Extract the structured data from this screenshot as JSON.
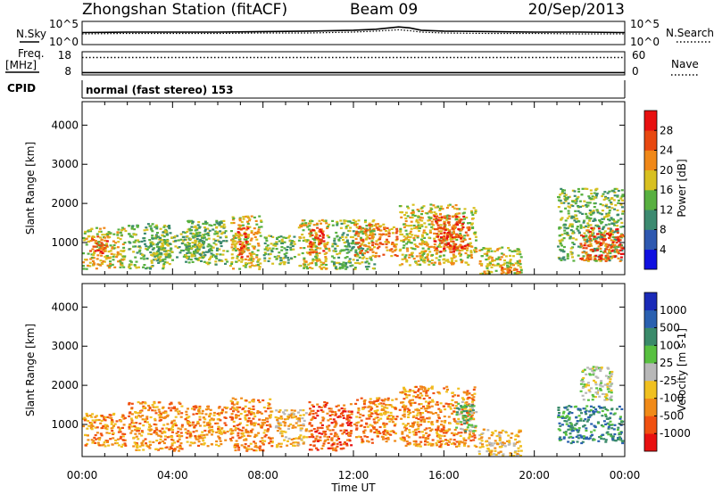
{
  "header": {
    "title": "Zhongshan Station (fitACF)",
    "beam": "Beam 09",
    "date": "20/Sep/2013",
    "cpid_label": "CPID",
    "cpid_value": "normal (fast stereo) 153"
  },
  "chart_data": [
    {
      "type": "line",
      "panel": "noise",
      "left_label": "N.Sky",
      "right_label": "N.Search",
      "left_ticks": [
        "10^5",
        "10^0"
      ],
      "right_ticks": [
        "10^5",
        "10^0"
      ],
      "x": [
        0,
        2,
        4,
        6,
        8,
        10,
        12,
        13,
        14,
        14.5,
        15,
        16,
        18,
        20,
        22,
        24
      ],
      "series": [
        {
          "name": "N.Sky",
          "style": "solid",
          "values": [
            2.6,
            2.7,
            2.7,
            2.7,
            2.8,
            2.9,
            3.1,
            3.3,
            3.8,
            3.6,
            3.1,
            2.9,
            2.8,
            2.7,
            2.7,
            2.6
          ]
        },
        {
          "name": "N.Search",
          "style": "dotted",
          "values": [
            2.3,
            2.4,
            2.4,
            2.4,
            2.5,
            2.5,
            2.7,
            2.9,
            3.2,
            3.0,
            2.7,
            2.5,
            2.4,
            2.4,
            2.3,
            2.3
          ]
        }
      ]
    },
    {
      "type": "line",
      "panel": "frequency",
      "left_label": "Freq.",
      "left_unit": "[MHz]",
      "right_label": "Nave",
      "left_ticks": [
        "18",
        "8"
      ],
      "right_ticks": [
        "60",
        "0"
      ],
      "ylim": [
        8,
        18
      ],
      "x": [
        0,
        24
      ],
      "series": [
        {
          "name": "Freq.",
          "style": "solid",
          "values": [
            9,
            9
          ]
        },
        {
          "name": "Nave",
          "style": "dotted",
          "values": [
            45,
            45
          ]
        }
      ]
    },
    {
      "type": "heatmap",
      "panel": "power",
      "ylabel": "Slant Range [km]",
      "yticks": [
        1000,
        2000,
        3000,
        4000
      ],
      "ylim": [
        180,
        4600
      ],
      "xlim": [
        0,
        24
      ],
      "colorbar_label": "Power [dB]",
      "colorbar_ticks": [
        "4",
        "8",
        "12",
        "16",
        "20",
        "24",
        "28"
      ],
      "colorbar_colors": [
        "#1010e0",
        "#2e58b0",
        "#3c8a70",
        "#58b040",
        "#d8c020",
        "#f08818",
        "#e84810",
        "#e81010"
      ],
      "regions": [
        {
          "x": [
            0.0,
            2.0
          ],
          "r": [
            300,
            1400
          ],
          "level": 4
        },
        {
          "x": [
            0.3,
            1.2
          ],
          "r": [
            700,
            1200
          ],
          "level": 6
        },
        {
          "x": [
            2.0,
            4.0
          ],
          "r": [
            300,
            1500
          ],
          "level": 3
        },
        {
          "x": [
            3.0,
            5.5
          ],
          "r": [
            500,
            1300
          ],
          "level": 3
        },
        {
          "x": [
            4.5,
            6.5
          ],
          "r": [
            400,
            1600
          ],
          "level": 3
        },
        {
          "x": [
            6.5,
            8.0
          ],
          "r": [
            300,
            1700
          ],
          "level": 4
        },
        {
          "x": [
            6.8,
            7.4
          ],
          "r": [
            600,
            1400
          ],
          "level": 6
        },
        {
          "x": [
            8.0,
            9.5
          ],
          "r": [
            400,
            1200
          ],
          "level": 3
        },
        {
          "x": [
            9.5,
            11.0
          ],
          "r": [
            300,
            1600
          ],
          "level": 4
        },
        {
          "x": [
            10.0,
            10.8
          ],
          "r": [
            700,
            1400
          ],
          "level": 6
        },
        {
          "x": [
            11.0,
            13.0
          ],
          "r": [
            300,
            1600
          ],
          "level": 3
        },
        {
          "x": [
            12.0,
            14.0
          ],
          "r": [
            600,
            1500
          ],
          "level": 5
        },
        {
          "x": [
            14.0,
            17.5
          ],
          "r": [
            400,
            2000
          ],
          "level": 4
        },
        {
          "x": [
            15.5,
            17.2
          ],
          "r": [
            700,
            1700
          ],
          "level": 6
        },
        {
          "x": [
            17.5,
            19.5
          ],
          "r": [
            180,
            900
          ],
          "level": 4
        },
        {
          "x": [
            18.5,
            19.5
          ],
          "r": [
            180,
            500
          ],
          "level": 5
        },
        {
          "x": [
            21.0,
            24.0
          ],
          "r": [
            500,
            2400
          ],
          "level": 3
        },
        {
          "x": [
            22.0,
            24.0
          ],
          "r": [
            500,
            1400
          ],
          "level": 6
        }
      ]
    },
    {
      "type": "heatmap",
      "panel": "velocity",
      "ylabel": "Slant Range [km]",
      "yticks": [
        1000,
        2000,
        3000,
        4000
      ],
      "ylim": [
        180,
        4600
      ],
      "xlim": [
        0,
        24
      ],
      "xticks": [
        "00:00",
        "04:00",
        "08:00",
        "12:00",
        "16:00",
        "20:00",
        "00:00"
      ],
      "xlabel": "Time UT",
      "colorbar_label": "Velocity [m s-1]",
      "colorbar_ticks": [
        "-1000",
        "-500",
        "-100",
        "-25",
        "25",
        "100",
        "500",
        "1000"
      ],
      "colorbar_colors": [
        "#e81010",
        "#f05010",
        "#f08a18",
        "#f0c020",
        "#b8b8b8",
        "#58c040",
        "#3a8a6a",
        "#2a60b0",
        "#1a2ab8"
      ],
      "regions": [
        {
          "x": [
            0.0,
            2.0
          ],
          "r": [
            400,
            1300
          ],
          "level": 2
        },
        {
          "x": [
            2.0,
            4.5
          ],
          "r": [
            300,
            1600
          ],
          "level": 2
        },
        {
          "x": [
            4.5,
            6.5
          ],
          "r": [
            400,
            1500
          ],
          "level": 2
        },
        {
          "x": [
            6.5,
            8.5
          ],
          "r": [
            300,
            1700
          ],
          "level": 2
        },
        {
          "x": [
            8.5,
            10.0
          ],
          "r": [
            400,
            1400
          ],
          "level": 3
        },
        {
          "x": [
            10.0,
            12.0
          ],
          "r": [
            300,
            1600
          ],
          "level": 1
        },
        {
          "x": [
            12.0,
            14.0
          ],
          "r": [
            500,
            1700
          ],
          "level": 2
        },
        {
          "x": [
            14.0,
            17.5
          ],
          "r": [
            400,
            2000
          ],
          "level": 2
        },
        {
          "x": [
            16.5,
            17.5
          ],
          "r": [
            800,
            1600
          ],
          "level": 5
        },
        {
          "x": [
            17.5,
            19.5
          ],
          "r": [
            180,
            900
          ],
          "level": 3
        },
        {
          "x": [
            21.0,
            24.0
          ],
          "r": [
            500,
            1500
          ],
          "level": 6
        },
        {
          "x": [
            22.0,
            23.5
          ],
          "r": [
            1600,
            2500
          ],
          "level": 4
        }
      ]
    }
  ]
}
